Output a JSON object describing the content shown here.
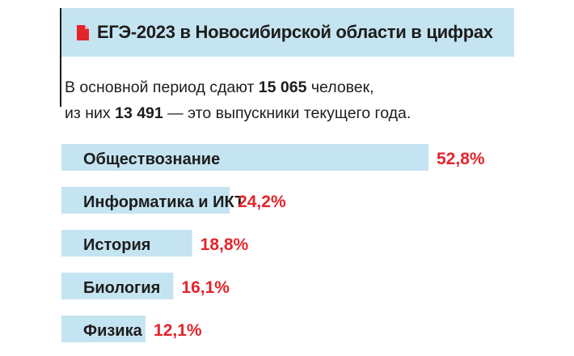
{
  "header": {
    "title": "ЕГЭ-2023 в Новосибирской области в цифрах",
    "icon": "document-icon",
    "icon_color": "#e3242b"
  },
  "intro": {
    "line1_prefix": "В основной период сдают ",
    "line1_number": "15 065",
    "line1_suffix": " человек,",
    "line2_prefix": "из них ",
    "line2_number": "13 491",
    "line2_suffix": " — это выпускники текущего года."
  },
  "colors": {
    "bar": "#c5e4f2",
    "value_text": "#e3242b",
    "label_text": "#1d1d1b"
  },
  "chart_data": {
    "type": "bar",
    "orientation": "horizontal",
    "categories": [
      "Обществознание",
      "Информатика и ИКТ",
      "История",
      "Биология",
      "Физика"
    ],
    "values": [
      52.8,
      24.2,
      18.8,
      16.1,
      12.1
    ],
    "value_labels": [
      "52,8%",
      "24,2%",
      "18,8%",
      "16,1%",
      "12,1%"
    ],
    "unit": "%"
  }
}
